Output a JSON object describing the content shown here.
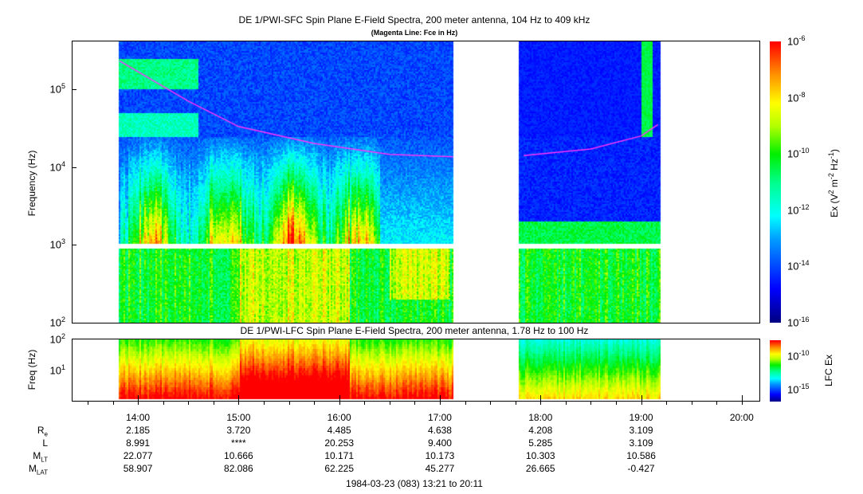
{
  "chart_data": [
    {
      "type": "heatmap",
      "title": "DE 1/PWI-SFC  Spin Plane E-Field Spectra, 200 meter antenna, 104 Hz to 409 kHz",
      "subtitle": "(Magenta Line: Fce in Hz)",
      "ylabel": "Frequency (Hz)",
      "ylim": [
        100,
        409000
      ],
      "yscale": "log",
      "yticks": [
        "10^2",
        "10^3",
        "10^4",
        "10^5"
      ],
      "time_range": [
        "13:21",
        "20:11"
      ],
      "data_intervals": [
        [
          "13:48",
          "17:08"
        ],
        [
          "17:47",
          "19:11"
        ]
      ],
      "colorbar": {
        "label": "Ex (V2 m-2 Hz-1)",
        "range_log10": [
          -16,
          -6
        ],
        "ticks": [
          "-6",
          "-8",
          "-10",
          "-12",
          "-14",
          "-16"
        ]
      },
      "fce_line": {
        "name": "Fce",
        "color": "#ff33ff",
        "points": [
          [
            "13:49",
            230000
          ],
          [
            "14:30",
            70000
          ],
          [
            "15:00",
            33000
          ],
          [
            "15:45",
            20000
          ],
          [
            "16:30",
            14500
          ],
          [
            "17:08",
            13500
          ],
          [
            "17:50",
            14000
          ],
          [
            "18:30",
            17000
          ],
          [
            "19:00",
            25000
          ],
          [
            "19:10",
            35000
          ]
        ]
      }
    },
    {
      "type": "heatmap",
      "title": "DE 1/PWI-LFC  Spin Plane E-Field Spectra, 200 meter antenna, 1.78 Hz to 100 Hz",
      "ylabel": "Freq (Hz)",
      "ylim": [
        1.78,
        100
      ],
      "yscale": "log",
      "yticks": [
        "10^2",
        "10^1"
      ],
      "colorbar": {
        "label": "LFC Ex",
        "ticks": [
          "-10",
          "-15"
        ]
      }
    }
  ],
  "xaxis": {
    "ticks": [
      "14:00",
      "15:00",
      "16:00",
      "17:00",
      "18:00",
      "19:00",
      "20:00"
    ]
  },
  "ephemeris": {
    "rows": [
      {
        "label": "R",
        "sub": "e",
        "values": [
          "2.185",
          "3.720",
          "4.485",
          "4.638",
          "4.208",
          "3.109"
        ]
      },
      {
        "label": "L",
        "sub": "",
        "values": [
          "8.991",
          "****",
          "20.253",
          "9.400",
          "5.285",
          "3.109"
        ]
      },
      {
        "label": "M",
        "sub": "LT",
        "values": [
          "22.077",
          "10.666",
          "10.171",
          "10.173",
          "10.303",
          "10.586"
        ]
      },
      {
        "label": "M",
        "sub": "LAT",
        "values": [
          "58.907",
          "82.086",
          "62.225",
          "45.277",
          "26.665",
          "-0.427"
        ]
      }
    ]
  },
  "footer": "1984-03-23 (083) 13:21 to 20:11",
  "cb_label_main": {
    "pre": "Ex (V",
    "s1": "2",
    "m": " m",
    "s2": "-2",
    "hz": " Hz",
    "s3": "-1",
    "post": ")"
  },
  "cb_label_lfc": "LFC Ex"
}
